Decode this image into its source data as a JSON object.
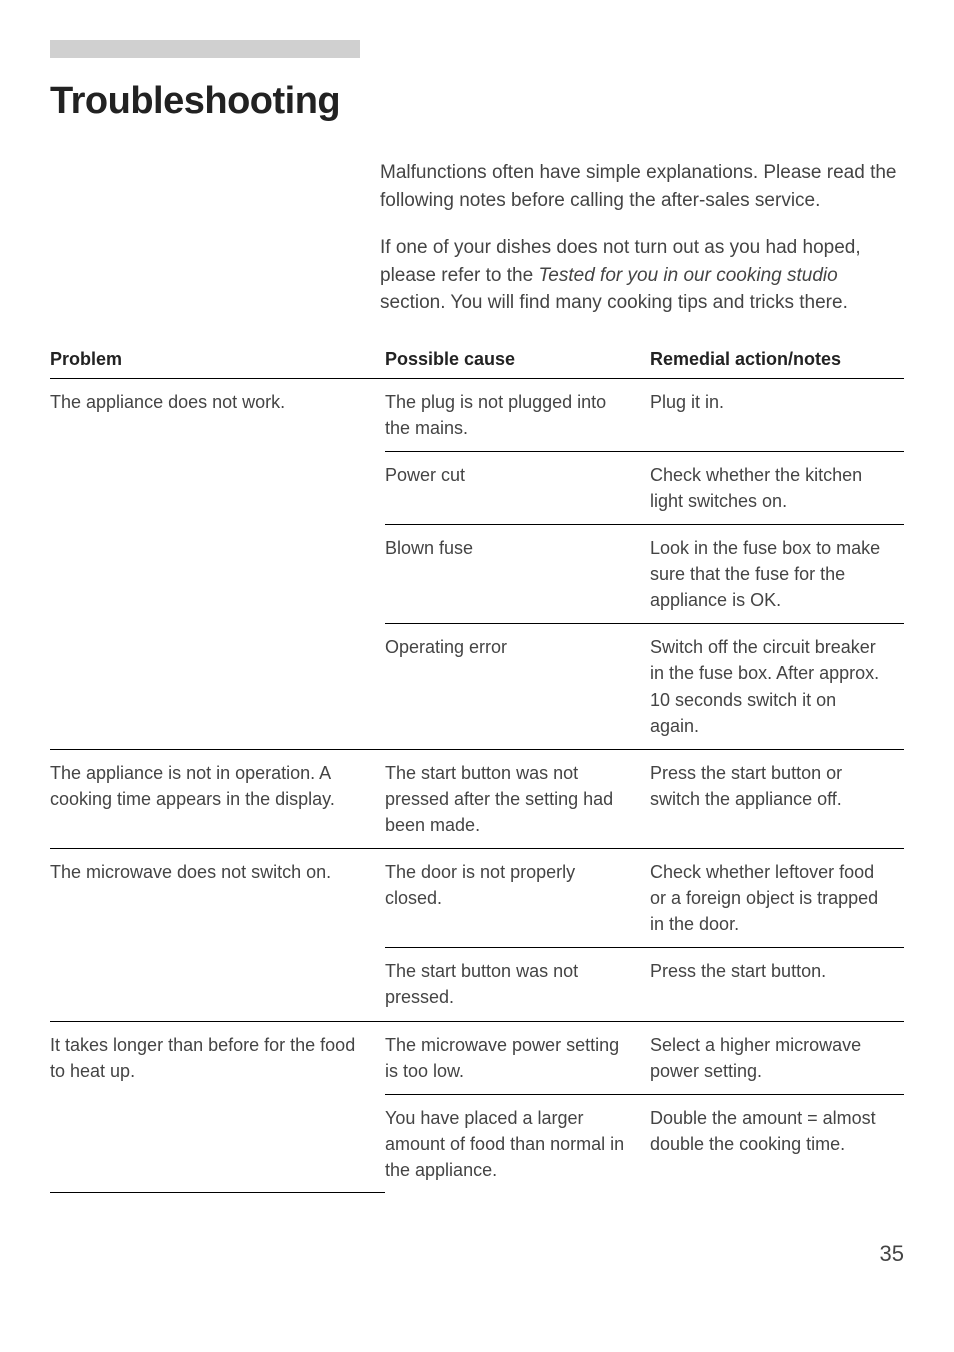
{
  "page": {
    "title": "Troubleshooting",
    "intro1": "Malfunctions often have simple explanations. Please read the following notes before calling the after-sales service.",
    "intro2_pre": "If one of your dishes does not turn out as you had hoped, please refer to the ",
    "intro2_em": "Tested for you in our cooking studio",
    "intro2_post": " section. You will find many cooking tips and tricks there.",
    "page_number": "35"
  },
  "headers": {
    "problem": "Problem",
    "cause": "Possible cause",
    "remedy": "Remedial action/notes"
  },
  "rows": {
    "r1": {
      "problem": "The appliance does not work.",
      "cause": "The plug is not plugged into the mains.",
      "remedy": "Plug it in."
    },
    "r2": {
      "cause": "Power cut",
      "remedy": "Check whether the kitchen light switches on."
    },
    "r3": {
      "cause": "Blown fuse",
      "remedy": "Look in the fuse box to make sure that the fuse for the appliance is OK."
    },
    "r4": {
      "cause": "Operating error",
      "remedy": "Switch off the circuit breaker in the fuse box. After approx. 10 seconds switch it on again."
    },
    "r5": {
      "problem": "The appliance is not in operation. A cooking time appears in the display.",
      "cause": "The start button was not pressed after the setting had been made.",
      "remedy": "Press the start button or switch the appliance off."
    },
    "r6": {
      "problem": "The microwave does not switch on.",
      "cause": "The door is not properly closed.",
      "remedy": "Check whether leftover food or a foreign object is trapped in the door."
    },
    "r7": {
      "cause": "The start button was not pressed.",
      "remedy": "Press the start button."
    },
    "r8": {
      "problem": "It takes longer than before for the food to heat up.",
      "cause": "The microwave power setting is too low.",
      "remedy": "Select a higher microwave power setting."
    },
    "r9": {
      "cause": "You have placed a larger amount of food than normal in the appliance.",
      "remedy": "Double the amount = almost double the cooking time."
    }
  }
}
